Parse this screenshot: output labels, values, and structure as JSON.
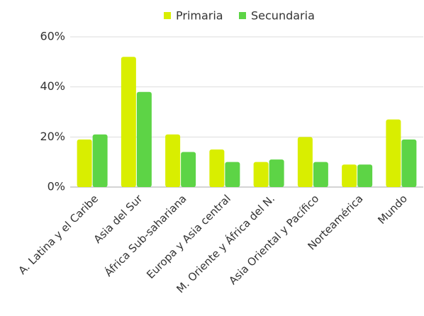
{
  "chart_data": {
    "type": "bar",
    "categories": [
      "A. Latina y el Caribe",
      "Asia del Sur",
      "África Sub-sahariana",
      "Europa y Asia central",
      "M. Oriente y África del N.",
      "Asia Oriental y Pacífico",
      "Norteamérica",
      "Mundo"
    ],
    "series": [
      {
        "name": "Primaria",
        "color": "#d9ee00",
        "values": [
          19,
          52,
          21,
          15,
          10,
          20,
          9,
          27
        ]
      },
      {
        "name": "Secundaria",
        "color": "#5dd446",
        "values": [
          21,
          38,
          14,
          10,
          11,
          10,
          9,
          19
        ]
      }
    ],
    "ylim": [
      0,
      60
    ],
    "yticks": [
      {
        "value": 0,
        "label": "0%"
      },
      {
        "value": 20,
        "label": "20%"
      },
      {
        "value": 40,
        "label": "40%"
      },
      {
        "value": 60,
        "label": "60%"
      }
    ],
    "grid": true,
    "legend": "top"
  }
}
